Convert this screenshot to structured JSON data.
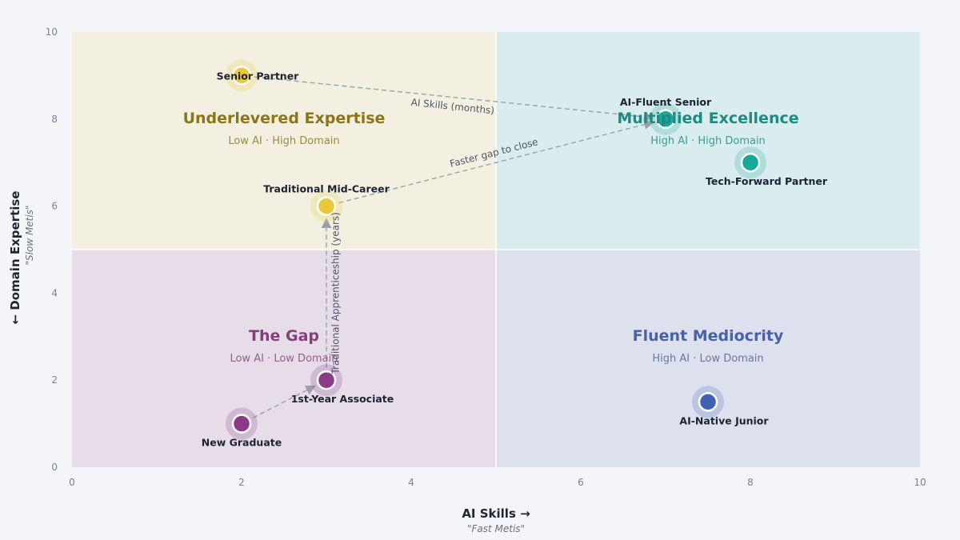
{
  "chart_data": {
    "type": "scatter",
    "xlim": [
      0,
      10
    ],
    "ylim": [
      0,
      10
    ],
    "x_ticks": [
      0,
      2,
      4,
      6,
      8,
      10
    ],
    "y_ticks": [
      0,
      2,
      4,
      6,
      8,
      10
    ],
    "xlabel": "AI Skills →",
    "xlabel_sub": "\"Fast Metis\"",
    "ylabel": "← Domain Expertise",
    "ylabel_sub": "\"Slow Metis\"",
    "grid": false,
    "quadrants": [
      {
        "name": "Underlevered Expertise",
        "subtitle": "Low AI · High Domain",
        "x": [
          0,
          5
        ],
        "y": [
          5,
          10
        ],
        "label_at": [
          2.5,
          7.9
        ],
        "fill": "#f3f0e1",
        "title_color": "#8c7518",
        "sub_color": "#9a8a3c"
      },
      {
        "name": "Multiplied Excellence",
        "subtitle": "High AI · High Domain",
        "x": [
          5,
          10
        ],
        "y": [
          5,
          10
        ],
        "label_at": [
          7.5,
          7.9
        ],
        "fill": "#d9ecee",
        "title_color": "#1f8a82",
        "sub_color": "#3f9a93"
      },
      {
        "name": "The Gap",
        "subtitle": "Low AI · Low Domain",
        "x": [
          0,
          5
        ],
        "y": [
          0,
          5
        ],
        "label_at": [
          2.5,
          2.9
        ],
        "fill": "#e6dde9",
        "title_color": "#83407a",
        "sub_color": "#92608c"
      },
      {
        "name": "Fluent Mediocrity",
        "subtitle": "High AI · Low Domain",
        "x": [
          5,
          10
        ],
        "y": [
          0,
          5
        ],
        "label_at": [
          7.5,
          2.9
        ],
        "fill": "#dde1ee",
        "title_color": "#4862a6",
        "sub_color": "#6478aa"
      }
    ],
    "points": [
      {
        "name": "Senior Partner",
        "x": 2,
        "y": 9,
        "color": "#e8c93a",
        "label_pos": "center"
      },
      {
        "name": "Traditional Mid-Career",
        "x": 3,
        "y": 6,
        "color": "#e8c93a",
        "label_pos": "above"
      },
      {
        "name": "AI-Fluent Senior",
        "x": 7,
        "y": 8,
        "color": "#19a89a",
        "label_pos": "above"
      },
      {
        "name": "Tech-Forward Partner",
        "x": 8,
        "y": 7,
        "color": "#19a89a",
        "label_pos": "below-right"
      },
      {
        "name": "1st-Year Associate",
        "x": 3,
        "y": 2,
        "color": "#8b3a86",
        "label_pos": "below-right"
      },
      {
        "name": "New Graduate",
        "x": 2,
        "y": 1,
        "color": "#8b3a86",
        "label_pos": "below"
      },
      {
        "name": "AI-Native Junior",
        "x": 7.5,
        "y": 1.5,
        "color": "#3f62b3",
        "label_pos": "below-right"
      }
    ],
    "arrows": [
      {
        "from": [
          2,
          1
        ],
        "to": [
          3,
          2
        ],
        "label": ""
      },
      {
        "from": [
          3,
          2
        ],
        "to": [
          3,
          6
        ],
        "label": "Traditional Apprenticeship (years)"
      },
      {
        "from": [
          3,
          6
        ],
        "to": [
          7,
          8
        ],
        "label": "Faster gap to close"
      },
      {
        "from": [
          2,
          9
        ],
        "to": [
          7,
          8
        ],
        "label": "AI Skills (months)"
      }
    ]
  }
}
